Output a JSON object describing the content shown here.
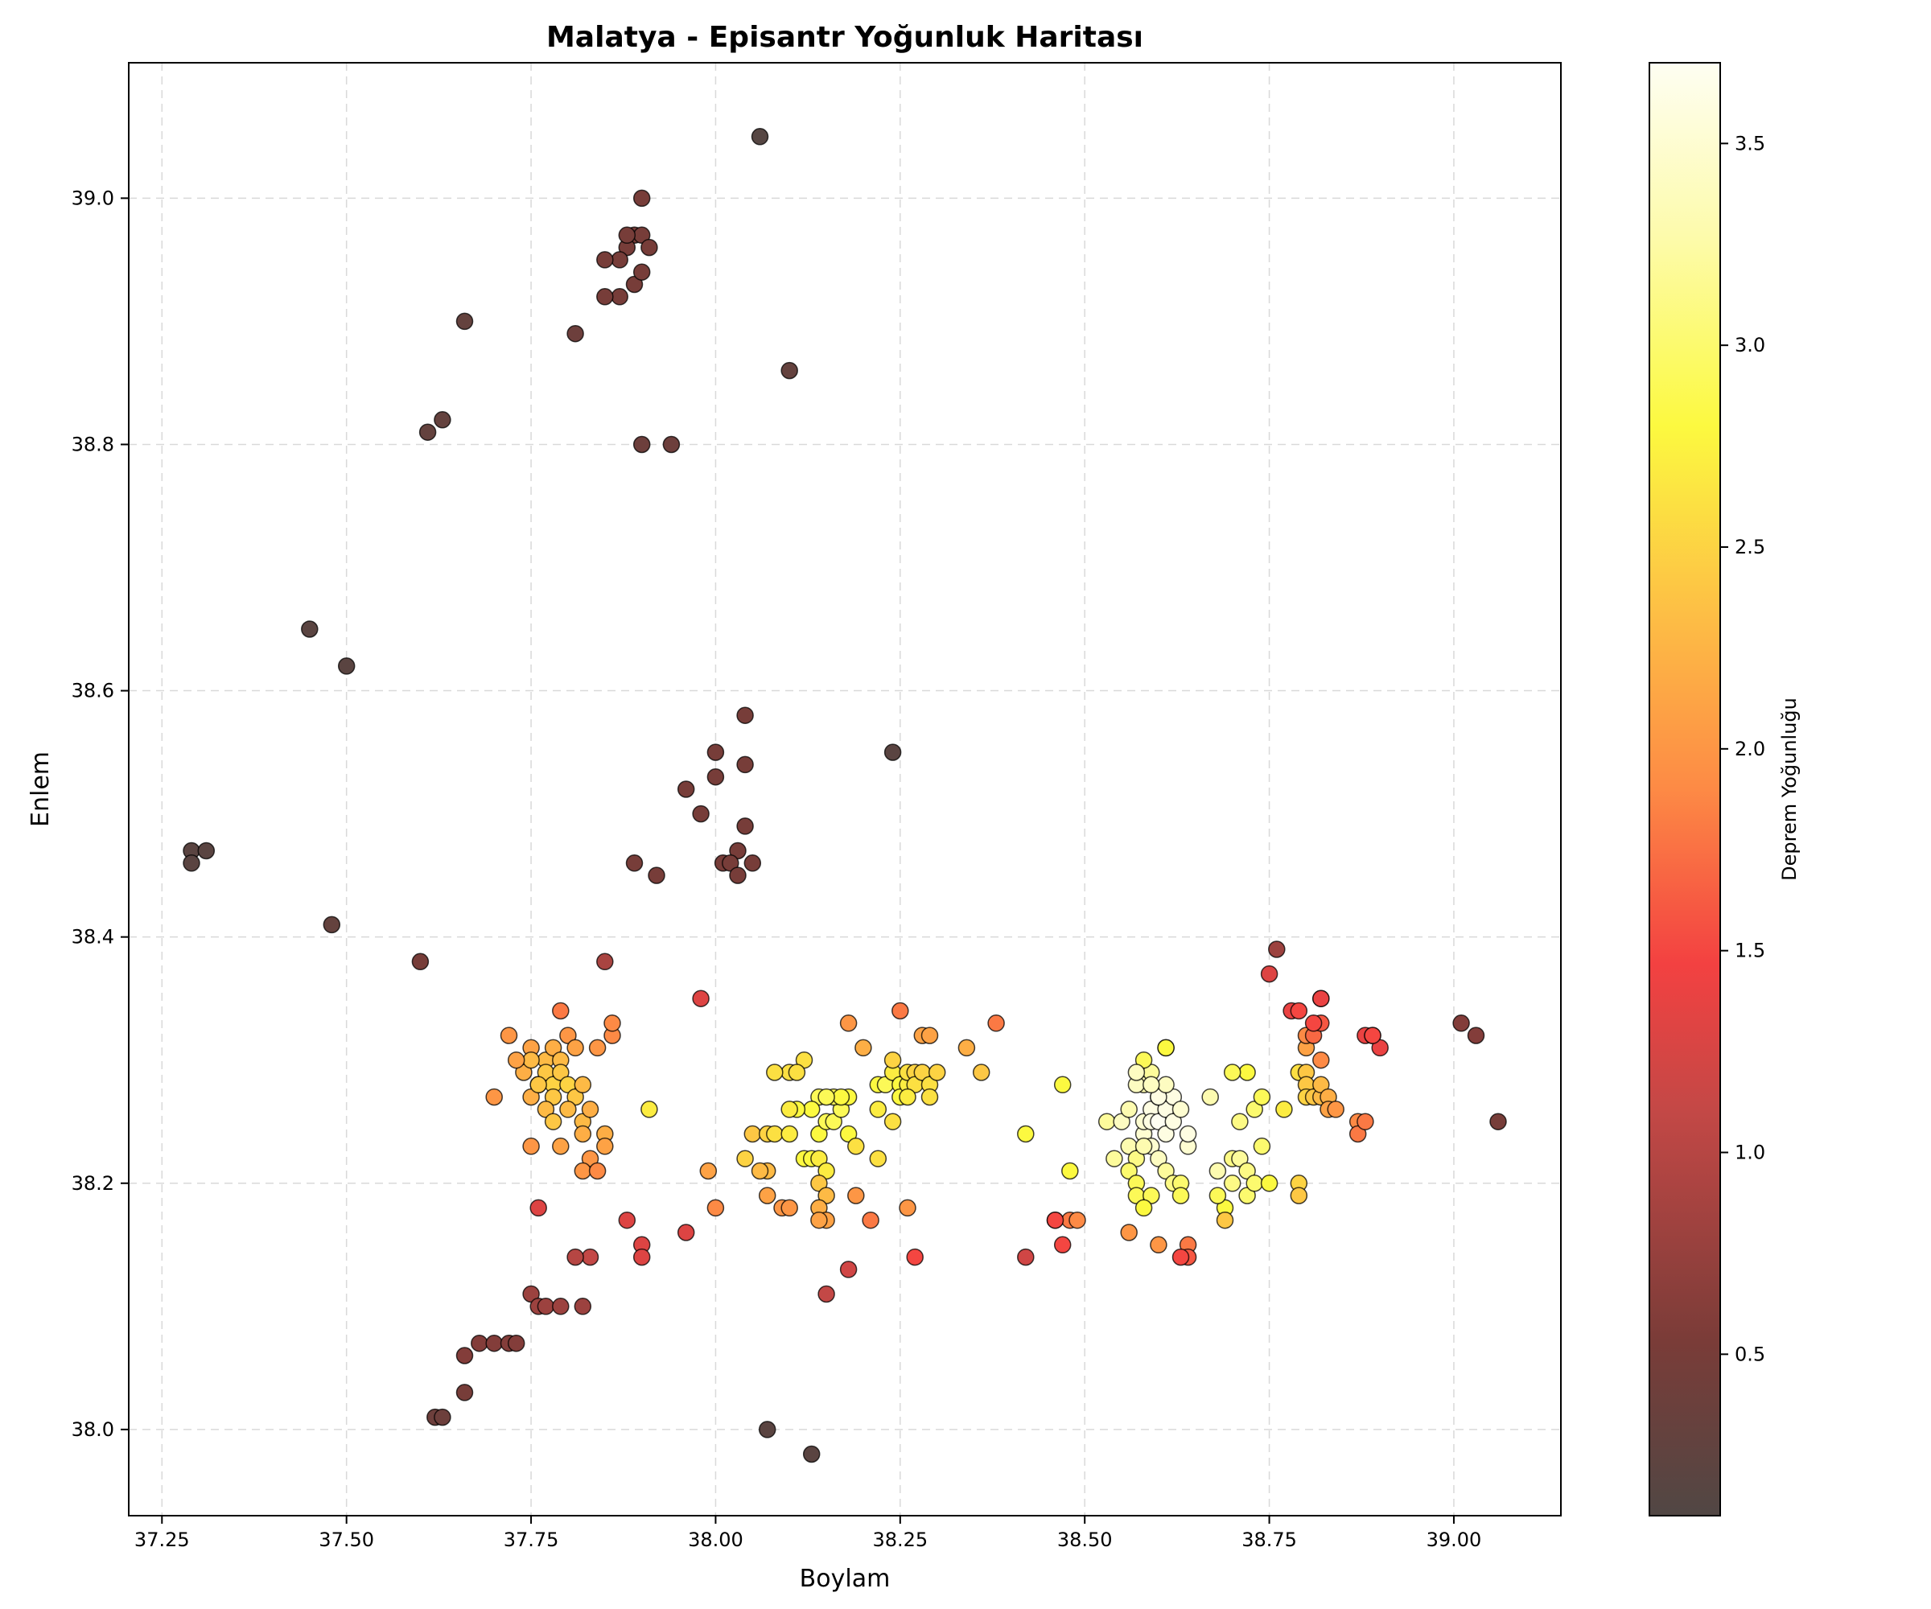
{
  "chart_data": {
    "type": "scatter",
    "title": "Malatya - Episantr Yoğunluk Haritası",
    "xlabel": "Boylam",
    "ylabel": "Enlem",
    "xlim": [
      37.205,
      39.145
    ],
    "ylim": [
      37.93,
      39.11
    ],
    "xticks": [
      "37.25",
      "37.50",
      "37.75",
      "38.00",
      "38.25",
      "38.50",
      "38.75",
      "39.00"
    ],
    "yticks": [
      "38.0",
      "38.2",
      "38.4",
      "38.6",
      "38.8",
      "39.0"
    ],
    "grid": true,
    "colorbar": {
      "label": "Deprem Yoğunluğu",
      "range": [
        0.1,
        3.7
      ],
      "ticks": [
        "0.5",
        "1.0",
        "1.5",
        "2.0",
        "2.5",
        "3.0",
        "3.5"
      ],
      "colormap": "hot"
    },
    "points": [
      [
        38.06,
        39.05,
        0.15
      ],
      [
        37.9,
        39.0,
        0.5
      ],
      [
        37.89,
        38.97,
        0.5
      ],
      [
        37.88,
        38.96,
        0.5
      ],
      [
        37.87,
        38.95,
        0.5
      ],
      [
        37.85,
        38.95,
        0.5
      ],
      [
        37.9,
        38.97,
        0.5
      ],
      [
        37.91,
        38.96,
        0.5
      ],
      [
        37.89,
        38.93,
        0.5
      ],
      [
        37.87,
        38.92,
        0.5
      ],
      [
        37.85,
        38.92,
        0.5
      ],
      [
        37.9,
        38.94,
        0.5
      ],
      [
        37.88,
        38.97,
        0.5
      ],
      [
        37.81,
        38.89,
        0.4
      ],
      [
        37.66,
        38.9,
        0.3
      ],
      [
        38.1,
        38.86,
        0.3
      ],
      [
        37.63,
        38.82,
        0.3
      ],
      [
        37.61,
        38.81,
        0.3
      ],
      [
        37.9,
        38.8,
        0.4
      ],
      [
        37.94,
        38.8,
        0.4
      ],
      [
        37.45,
        38.65,
        0.2
      ],
      [
        37.5,
        38.62,
        0.2
      ],
      [
        38.04,
        38.58,
        0.5
      ],
      [
        38.0,
        38.55,
        0.5
      ],
      [
        38.04,
        38.54,
        0.5
      ],
      [
        38.24,
        38.55,
        0.2
      ],
      [
        37.96,
        38.52,
        0.5
      ],
      [
        38.0,
        38.53,
        0.5
      ],
      [
        37.98,
        38.5,
        0.5
      ],
      [
        38.04,
        38.49,
        0.5
      ],
      [
        38.03,
        38.47,
        0.5
      ],
      [
        38.01,
        38.46,
        0.5
      ],
      [
        38.02,
        38.46,
        0.5
      ],
      [
        38.05,
        38.46,
        0.5
      ],
      [
        38.03,
        38.45,
        0.5
      ],
      [
        37.89,
        38.46,
        0.5
      ],
      [
        37.92,
        38.45,
        0.5
      ],
      [
        37.29,
        38.47,
        0.2
      ],
      [
        37.31,
        38.47,
        0.2
      ],
      [
        37.29,
        38.46,
        0.2
      ],
      [
        37.48,
        38.41,
        0.3
      ],
      [
        37.6,
        38.38,
        0.5
      ],
      [
        37.85,
        38.38,
        0.9
      ],
      [
        38.76,
        38.39,
        0.8
      ],
      [
        37.98,
        38.35,
        1.3
      ],
      [
        37.79,
        38.34,
        1.8
      ],
      [
        37.72,
        38.32,
        2.0
      ],
      [
        37.75,
        38.31,
        2.1
      ],
      [
        37.77,
        38.3,
        2.3
      ],
      [
        37.78,
        38.31,
        2.2
      ],
      [
        37.79,
        38.3,
        2.3
      ],
      [
        37.8,
        38.32,
        2.0
      ],
      [
        37.81,
        38.31,
        2.1
      ],
      [
        37.74,
        38.29,
        2.2
      ],
      [
        37.75,
        38.3,
        2.3
      ],
      [
        37.76,
        38.28,
        2.4
      ],
      [
        37.77,
        38.29,
        2.4
      ],
      [
        37.78,
        38.28,
        2.5
      ],
      [
        37.79,
        38.29,
        2.4
      ],
      [
        37.8,
        38.28,
        2.5
      ],
      [
        37.81,
        38.27,
        2.4
      ],
      [
        37.82,
        38.28,
        2.3
      ],
      [
        37.78,
        38.27,
        2.4
      ],
      [
        37.77,
        38.26,
        2.3
      ],
      [
        37.78,
        38.25,
        2.4
      ],
      [
        37.8,
        38.26,
        2.3
      ],
      [
        37.82,
        38.25,
        2.3
      ],
      [
        37.83,
        38.26,
        2.2
      ],
      [
        37.75,
        38.27,
        2.2
      ],
      [
        37.76,
        38.28,
        2.4
      ],
      [
        37.7,
        38.27,
        2.0
      ],
      [
        37.73,
        38.3,
        2.1
      ],
      [
        37.79,
        38.23,
        2.1
      ],
      [
        37.75,
        38.23,
        2.0
      ],
      [
        37.82,
        38.24,
        2.2
      ],
      [
        37.85,
        38.24,
        2.2
      ],
      [
        37.85,
        38.23,
        2.1
      ],
      [
        37.84,
        38.31,
        2.0
      ],
      [
        37.86,
        38.32,
        1.9
      ],
      [
        37.86,
        38.33,
        1.9
      ],
      [
        37.83,
        38.22,
        2.0
      ],
      [
        37.82,
        38.21,
        2.0
      ],
      [
        37.84,
        38.21,
        1.9
      ],
      [
        37.76,
        38.18,
        1.3
      ],
      [
        37.91,
        38.26,
        2.7
      ],
      [
        37.99,
        38.21,
        2.1
      ],
      [
        38.04,
        38.22,
        2.5
      ],
      [
        38.05,
        38.24,
        2.4
      ],
      [
        38.07,
        38.24,
        2.5
      ],
      [
        38.07,
        38.21,
        2.3
      ],
      [
        38.06,
        38.21,
        2.3
      ],
      [
        38.08,
        38.24,
        2.6
      ],
      [
        38.1,
        38.24,
        2.7
      ],
      [
        38.12,
        38.22,
        2.8
      ],
      [
        38.13,
        38.22,
        2.8
      ],
      [
        38.14,
        38.22,
        2.7
      ],
      [
        38.14,
        38.24,
        2.8
      ],
      [
        38.15,
        38.21,
        2.7
      ],
      [
        38.15,
        38.25,
        2.9
      ],
      [
        38.16,
        38.25,
        2.9
      ],
      [
        38.17,
        38.26,
        2.9
      ],
      [
        38.18,
        38.24,
        2.8
      ],
      [
        38.18,
        38.27,
        2.8
      ],
      [
        38.19,
        38.23,
        2.6
      ],
      [
        38.14,
        38.27,
        2.9
      ],
      [
        38.13,
        38.26,
        2.8
      ],
      [
        38.11,
        38.26,
        2.8
      ],
      [
        38.1,
        38.26,
        2.7
      ],
      [
        38.12,
        38.3,
        2.6
      ],
      [
        38.1,
        38.29,
        2.6
      ],
      [
        38.08,
        38.29,
        2.6
      ],
      [
        38.11,
        38.29,
        2.6
      ],
      [
        38.16,
        38.27,
        2.9
      ],
      [
        38.17,
        38.27,
        2.8
      ],
      [
        38.15,
        38.27,
        2.9
      ],
      [
        38.14,
        38.2,
        2.4
      ],
      [
        38.15,
        38.19,
        2.3
      ],
      [
        38.14,
        38.18,
        2.2
      ],
      [
        38.15,
        38.17,
        2.1
      ],
      [
        38.14,
        38.17,
        2.1
      ],
      [
        38.07,
        38.19,
        2.1
      ],
      [
        38.09,
        38.18,
        2.0
      ],
      [
        38.0,
        38.18,
        1.9
      ],
      [
        38.19,
        38.19,
        2.0
      ],
      [
        38.21,
        38.17,
        1.8
      ],
      [
        38.22,
        38.22,
        2.6
      ],
      [
        38.22,
        38.26,
        2.7
      ],
      [
        38.22,
        38.28,
        2.8
      ],
      [
        38.23,
        38.28,
        2.9
      ],
      [
        38.24,
        38.29,
        2.7
      ],
      [
        38.24,
        38.3,
        2.5
      ],
      [
        38.25,
        38.28,
        2.8
      ],
      [
        38.25,
        38.27,
        2.8
      ],
      [
        38.26,
        38.28,
        2.7
      ],
      [
        38.26,
        38.29,
        2.6
      ],
      [
        38.27,
        38.29,
        2.5
      ],
      [
        38.27,
        38.28,
        2.6
      ],
      [
        38.28,
        38.29,
        2.5
      ],
      [
        38.29,
        38.28,
        2.6
      ],
      [
        38.28,
        38.32,
        2.1
      ],
      [
        38.29,
        38.32,
        2.1
      ],
      [
        38.25,
        38.34,
        1.8
      ],
      [
        38.18,
        38.33,
        2.0
      ],
      [
        38.2,
        38.31,
        2.2
      ],
      [
        38.24,
        38.25,
        2.6
      ],
      [
        38.26,
        38.27,
        2.7
      ],
      [
        38.29,
        38.27,
        2.6
      ],
      [
        38.3,
        38.29,
        2.5
      ],
      [
        38.34,
        38.31,
        2.2
      ],
      [
        38.36,
        38.29,
        2.4
      ],
      [
        38.38,
        38.33,
        1.8
      ],
      [
        38.26,
        38.18,
        2.0
      ],
      [
        38.27,
        38.14,
        1.5
      ],
      [
        38.18,
        38.13,
        1.2
      ],
      [
        38.15,
        38.11,
        1.1
      ],
      [
        38.1,
        38.18,
        2.0
      ],
      [
        37.88,
        38.17,
        1.3
      ],
      [
        37.9,
        38.15,
        1.3
      ],
      [
        37.9,
        38.14,
        1.3
      ],
      [
        37.96,
        38.16,
        1.3
      ],
      [
        37.83,
        38.14,
        1.1
      ],
      [
        37.81,
        38.14,
        1.0
      ],
      [
        37.75,
        38.11,
        0.8
      ],
      [
        37.76,
        38.1,
        0.8
      ],
      [
        37.77,
        38.1,
        0.8
      ],
      [
        37.79,
        38.1,
        0.8
      ],
      [
        37.82,
        38.1,
        0.8
      ],
      [
        37.68,
        38.07,
        0.6
      ],
      [
        37.7,
        38.07,
        0.6
      ],
      [
        37.72,
        38.07,
        0.6
      ],
      [
        37.73,
        38.07,
        0.6
      ],
      [
        37.66,
        38.06,
        0.6
      ],
      [
        37.66,
        38.03,
        0.5
      ],
      [
        37.62,
        38.01,
        0.4
      ],
      [
        37.63,
        38.01,
        0.4
      ],
      [
        38.07,
        38.0,
        0.2
      ],
      [
        38.13,
        37.98,
        0.2
      ],
      [
        38.42,
        38.24,
        2.8
      ],
      [
        38.47,
        38.28,
        2.8
      ],
      [
        38.48,
        38.21,
        2.8
      ],
      [
        38.46,
        38.17,
        1.6
      ],
      [
        38.48,
        38.17,
        1.8
      ],
      [
        38.49,
        38.17,
        1.9
      ],
      [
        38.47,
        38.15,
        1.5
      ],
      [
        38.46,
        38.17,
        1.5
      ],
      [
        38.42,
        38.14,
        1.2
      ],
      [
        38.56,
        38.16,
        2.0
      ],
      [
        38.6,
        38.15,
        2.0
      ],
      [
        38.64,
        38.15,
        1.8
      ],
      [
        38.64,
        38.14,
        1.6
      ],
      [
        38.63,
        38.14,
        1.5
      ],
      [
        38.53,
        38.25,
        3.2
      ],
      [
        38.55,
        38.25,
        3.4
      ],
      [
        38.54,
        38.22,
        3.2
      ],
      [
        38.56,
        38.23,
        3.3
      ],
      [
        38.57,
        38.22,
        3.1
      ],
      [
        38.56,
        38.21,
        3.0
      ],
      [
        38.57,
        38.2,
        2.9
      ],
      [
        38.57,
        38.19,
        2.9
      ],
      [
        38.58,
        38.24,
        3.5
      ],
      [
        38.58,
        38.25,
        3.5
      ],
      [
        38.59,
        38.26,
        3.6
      ],
      [
        38.59,
        38.25,
        3.6
      ],
      [
        38.6,
        38.25,
        3.7
      ],
      [
        38.6,
        38.27,
        3.5
      ],
      [
        38.61,
        38.26,
        3.6
      ],
      [
        38.61,
        38.24,
        3.6
      ],
      [
        38.62,
        38.25,
        3.6
      ],
      [
        38.58,
        38.28,
        3.3
      ],
      [
        38.59,
        38.29,
        3.2
      ],
      [
        38.58,
        38.3,
        2.9
      ],
      [
        38.61,
        38.31,
        2.8
      ],
      [
        38.61,
        38.31,
        2.8
      ],
      [
        38.59,
        38.23,
        3.5
      ],
      [
        38.6,
        38.22,
        3.4
      ],
      [
        38.61,
        38.21,
        3.2
      ],
      [
        38.62,
        38.2,
        3.1
      ],
      [
        38.63,
        38.2,
        3.0
      ],
      [
        38.63,
        38.19,
        2.9
      ],
      [
        38.64,
        38.23,
        3.5
      ],
      [
        38.64,
        38.24,
        3.6
      ],
      [
        38.62,
        38.27,
        3.6
      ],
      [
        38.63,
        38.26,
        3.5
      ],
      [
        38.59,
        38.19,
        2.9
      ],
      [
        38.58,
        38.18,
        2.8
      ],
      [
        38.57,
        38.28,
        3.4
      ],
      [
        38.57,
        38.29,
        3.4
      ],
      [
        38.56,
        38.26,
        3.3
      ],
      [
        38.6,
        38.27,
        3.6
      ],
      [
        38.61,
        38.28,
        3.4
      ],
      [
        38.58,
        38.23,
        3.3
      ],
      [
        38.59,
        38.28,
        3.4
      ],
      [
        38.67,
        38.27,
        3.3
      ],
      [
        38.68,
        38.21,
        3.3
      ],
      [
        38.69,
        38.18,
        2.8
      ],
      [
        38.69,
        38.17,
        2.4
      ],
      [
        38.7,
        38.2,
        3.1
      ],
      [
        38.7,
        38.22,
        3.1
      ],
      [
        38.71,
        38.22,
        3.2
      ],
      [
        38.71,
        38.25,
        3.1
      ],
      [
        38.72,
        38.21,
        3.1
      ],
      [
        38.72,
        38.19,
        3.0
      ],
      [
        38.73,
        38.2,
        3.0
      ],
      [
        38.73,
        38.26,
        3.0
      ],
      [
        38.74,
        38.23,
        3.0
      ],
      [
        38.74,
        38.27,
        2.9
      ],
      [
        38.75,
        38.2,
        2.8
      ],
      [
        38.72,
        38.29,
        2.8
      ],
      [
        38.7,
        38.29,
        2.9
      ],
      [
        38.68,
        38.19,
        2.9
      ],
      [
        38.77,
        38.26,
        2.7
      ],
      [
        38.79,
        38.29,
        2.6
      ],
      [
        38.8,
        38.29,
        2.4
      ],
      [
        38.8,
        38.28,
        2.4
      ],
      [
        38.8,
        38.27,
        2.5
      ],
      [
        38.81,
        38.27,
        2.4
      ],
      [
        38.82,
        38.27,
        2.3
      ],
      [
        38.82,
        38.28,
        2.3
      ],
      [
        38.83,
        38.27,
        2.2
      ],
      [
        38.83,
        38.26,
        2.1
      ],
      [
        38.84,
        38.26,
        2.0
      ],
      [
        38.79,
        38.2,
        2.5
      ],
      [
        38.79,
        38.19,
        2.4
      ],
      [
        38.8,
        38.31,
        2.1
      ],
      [
        38.8,
        38.32,
        1.9
      ],
      [
        38.81,
        38.32,
        1.7
      ],
      [
        38.82,
        38.3,
        1.9
      ],
      [
        38.82,
        38.33,
        1.6
      ],
      [
        38.81,
        38.33,
        1.5
      ],
      [
        38.78,
        38.34,
        1.4
      ],
      [
        38.79,
        38.34,
        1.5
      ],
      [
        38.82,
        38.35,
        1.4
      ],
      [
        38.82,
        38.35,
        1.4
      ],
      [
        38.75,
        38.37,
        1.3
      ],
      [
        38.87,
        38.25,
        1.9
      ],
      [
        38.87,
        38.24,
        1.8
      ],
      [
        38.88,
        38.25,
        1.8
      ],
      [
        38.88,
        38.32,
        1.4
      ],
      [
        38.89,
        38.32,
        1.4
      ],
      [
        38.9,
        38.31,
        1.4
      ],
      [
        38.89,
        38.32,
        1.5
      ],
      [
        39.01,
        38.33,
        0.6
      ],
      [
        39.03,
        38.32,
        0.6
      ],
      [
        39.06,
        38.25,
        0.5
      ]
    ]
  }
}
